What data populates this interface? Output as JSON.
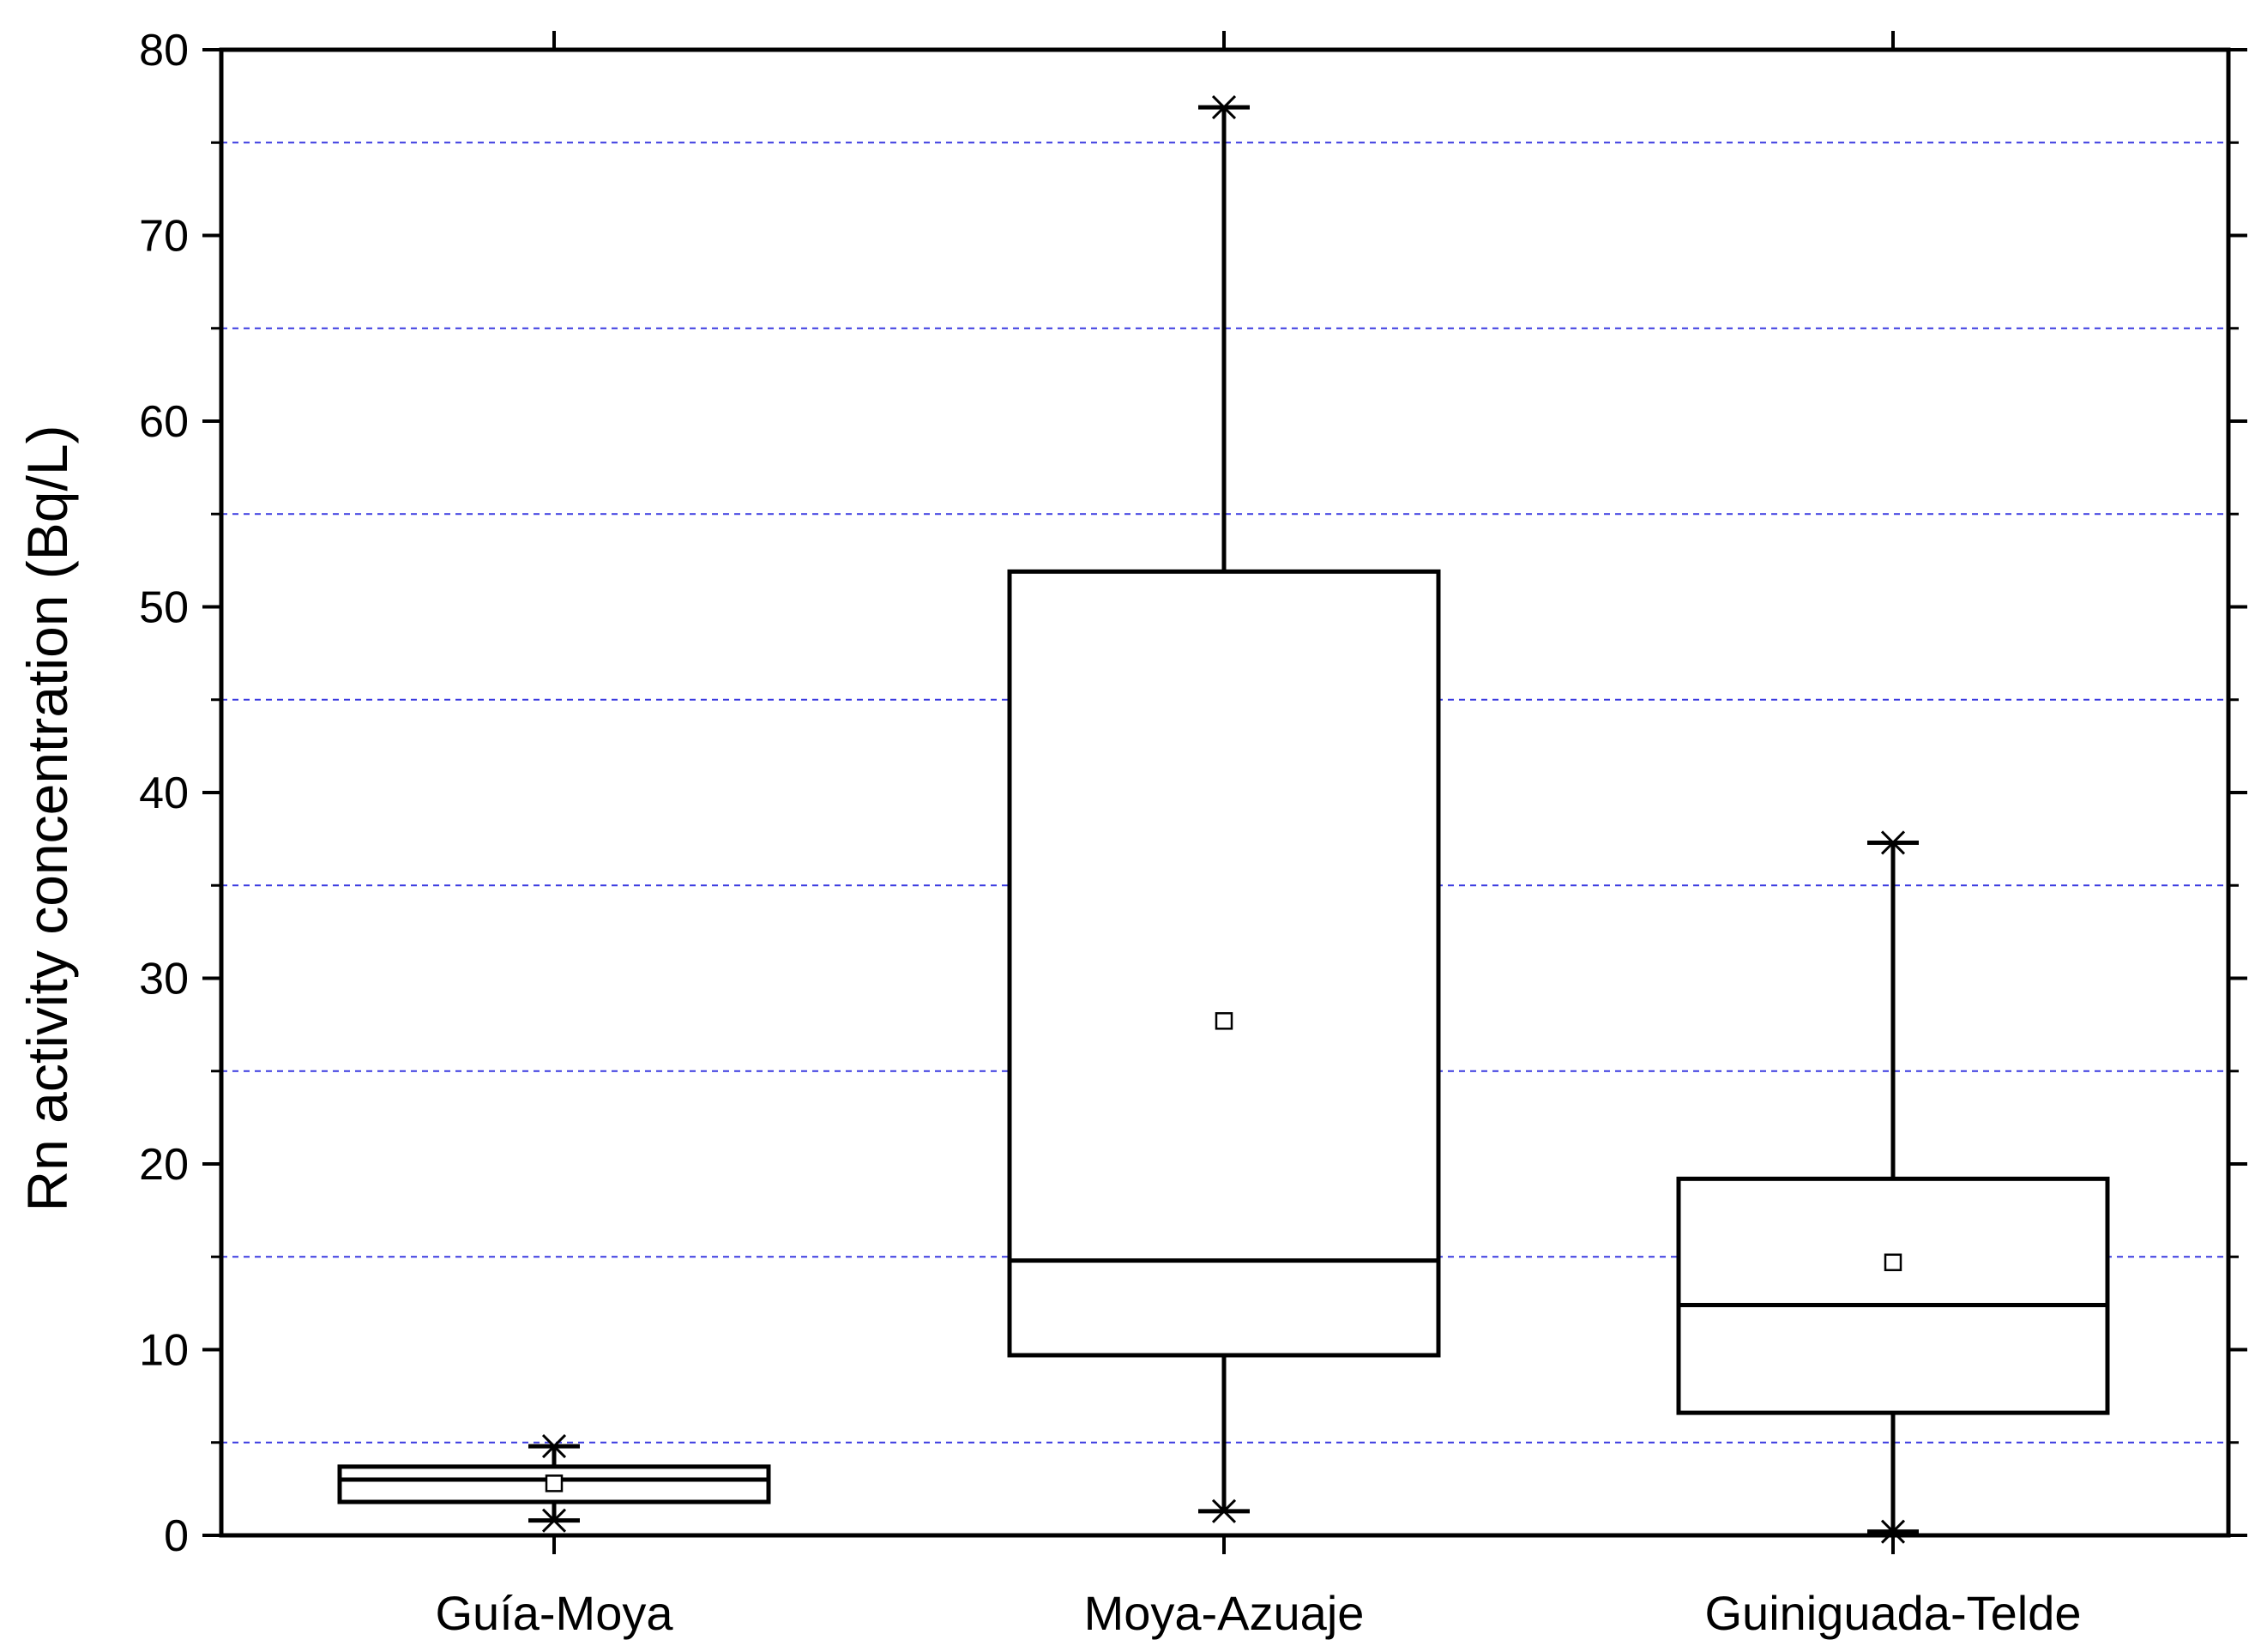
{
  "chart_data": {
    "type": "box",
    "title": "",
    "ylabel": "Rn activity concentration (Bq/L)",
    "xlabel": "",
    "ylim": [
      0,
      80
    ],
    "yticks": [
      "0",
      "10",
      "20",
      "30",
      "40",
      "50",
      "60",
      "70",
      "80"
    ],
    "grid": {
      "y_values": [
        5,
        15,
        25,
        35,
        45,
        55,
        65,
        75
      ],
      "style": "dashed",
      "color": "#3a3ae0"
    },
    "categories": [
      "Guía-Moya",
      "Moya-Azuaje",
      "Guiniguada-Telde"
    ],
    "boxes": [
      {
        "category": "Guía-Moya",
        "whisker_min": 0.8,
        "q1": 1.8,
        "median": 3.0,
        "q3": 3.7,
        "whisker_max": 4.8,
        "mean": 2.8
      },
      {
        "category": "Moya-Azuaje",
        "whisker_min": 1.3,
        "q1": 9.7,
        "median": 14.8,
        "q3": 51.9,
        "whisker_max": 76.9,
        "mean": 27.7
      },
      {
        "category": "Guiniguada-Telde",
        "whisker_min": 0.2,
        "q1": 6.6,
        "median": 12.4,
        "q3": 19.2,
        "whisker_max": 37.3,
        "mean": 14.7
      }
    ]
  }
}
